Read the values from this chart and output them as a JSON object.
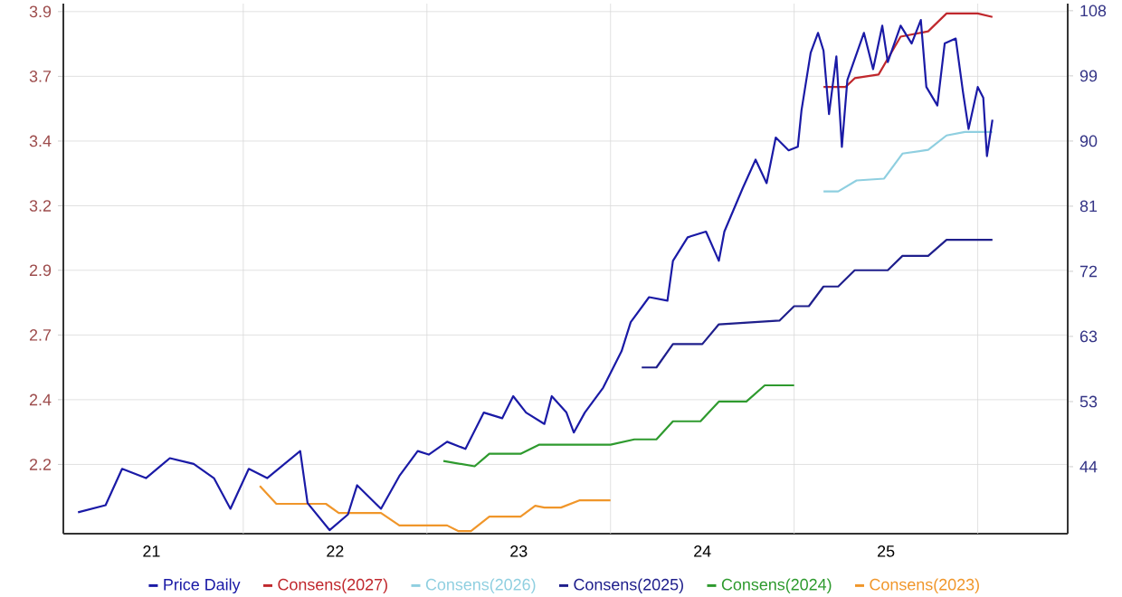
{
  "chart_data": {
    "type": "line",
    "xlim": [
      20.52,
      25.99
    ],
    "ylim": [
      1.94,
      3.93
    ],
    "y2lim": [
      34.9,
      109.3
    ],
    "xticks": [
      {
        "value": 21,
        "label": "21"
      },
      {
        "value": 21.5,
        "label": null
      },
      {
        "value": 22,
        "label": "22"
      },
      {
        "value": 22.5,
        "label": null
      },
      {
        "value": 23,
        "label": "23"
      },
      {
        "value": 23.5,
        "label": null
      },
      {
        "value": 24,
        "label": "24"
      },
      {
        "value": 24.5,
        "label": null
      },
      {
        "value": 25,
        "label": "25"
      },
      {
        "value": 25.5,
        "label": null
      }
    ],
    "yticks": [
      {
        "value": 2.2,
        "label": "2.2"
      },
      {
        "value": 2.443,
        "label": "2.4"
      },
      {
        "value": 2.686,
        "label": "2.7"
      },
      {
        "value": 2.929,
        "label": "2.9"
      },
      {
        "value": 3.171,
        "label": "3.2"
      },
      {
        "value": 3.414,
        "label": "3.4"
      },
      {
        "value": 3.657,
        "label": "3.7"
      },
      {
        "value": 3.9,
        "label": "3.9"
      }
    ],
    "y2ticks": [
      {
        "value": 44.3,
        "label": "44"
      },
      {
        "value": 53.44,
        "label": "53"
      },
      {
        "value": 62.59,
        "label": "63"
      },
      {
        "value": 71.73,
        "label": "72"
      },
      {
        "value": 80.87,
        "label": "81"
      },
      {
        "value": 90.01,
        "label": "90"
      },
      {
        "value": 99.16,
        "label": "99"
      },
      {
        "value": 108.3,
        "label": "108"
      }
    ],
    "grid": true,
    "legend": "bottom",
    "marker": "none",
    "line_style": "solid",
    "series": [
      {
        "name": "Price Daily",
        "color": "#1a1aa6",
        "axis": "y2",
        "x": [
          20.6,
          20.75,
          20.84,
          20.97,
          21.1,
          21.23,
          21.34,
          21.43,
          21.53,
          21.63,
          21.81,
          21.85,
          21.97,
          22.07,
          22.12,
          22.25,
          22.35,
          22.45,
          22.51,
          22.61,
          22.71,
          22.81,
          22.91,
          22.97,
          23.04,
          23.14,
          23.18,
          23.26,
          23.3,
          23.36,
          23.46,
          23.56,
          23.61,
          23.71,
          23.81,
          23.84,
          23.92,
          24.02,
          24.09,
          24.12,
          24.22,
          24.29,
          24.35,
          24.4,
          24.47,
          24.52,
          24.54,
          24.59,
          24.63,
          24.66,
          24.69,
          24.73,
          24.76,
          24.79,
          24.88,
          24.93,
          24.98,
          25.01,
          25.08,
          25.14,
          25.19,
          25.22,
          25.28,
          25.32,
          25.38,
          25.42,
          25.45,
          25.5,
          25.53,
          25.55,
          25.58
        ],
        "values": [
          37.9,
          38.9,
          44.0,
          42.7,
          45.5,
          44.7,
          42.7,
          38.4,
          44.0,
          42.7,
          46.5,
          39.2,
          35.4,
          37.6,
          41.7,
          38.4,
          43.0,
          46.5,
          46.0,
          47.8,
          46.8,
          51.9,
          51.1,
          54.2,
          51.9,
          50.3,
          54.2,
          51.9,
          49.1,
          51.9,
          55.4,
          60.5,
          64.6,
          68.1,
          67.6,
          73.2,
          76.5,
          77.3,
          73.2,
          77.3,
          83.4,
          87.4,
          84.1,
          90.5,
          88.7,
          89.2,
          94.3,
          102.4,
          105.2,
          102.7,
          93.8,
          101.9,
          89.2,
          98.6,
          105.2,
          100.1,
          106.2,
          101.1,
          106.2,
          103.7,
          107.0,
          97.6,
          95.0,
          103.7,
          104.4,
          96.8,
          91.7,
          97.6,
          96.1,
          87.9,
          93.0
        ]
      },
      {
        "name": "Consens(2027)",
        "color": "#c0282d",
        "axis": "y",
        "x": [
          24.66,
          24.78,
          24.83,
          24.96,
          25.08,
          25.23,
          25.33,
          25.5,
          25.58
        ],
        "values": [
          3.617,
          3.617,
          3.65,
          3.664,
          3.806,
          3.826,
          3.893,
          3.893,
          3.88
        ]
      },
      {
        "name": "Consens(2026)",
        "color": "#8fcfe0",
        "axis": "y",
        "x": [
          24.66,
          24.74,
          24.84,
          24.99,
          25.09,
          25.23,
          25.33,
          25.43,
          25.58
        ],
        "values": [
          3.225,
          3.225,
          3.266,
          3.273,
          3.367,
          3.381,
          3.435,
          3.448,
          3.448
        ]
      },
      {
        "name": "Consens(2025)",
        "color": "#1f1f8c",
        "axis": "y",
        "x": [
          23.67,
          23.75,
          23.84,
          24.0,
          24.09,
          24.42,
          24.5,
          24.58,
          24.66,
          24.74,
          24.83,
          25.01,
          25.09,
          25.23,
          25.33,
          25.58
        ],
        "values": [
          2.564,
          2.564,
          2.652,
          2.652,
          2.726,
          2.74,
          2.794,
          2.794,
          2.868,
          2.868,
          2.929,
          2.929,
          2.983,
          2.983,
          3.043,
          3.043
        ]
      },
      {
        "name": "Consens(2024)",
        "color": "#2e9a2e",
        "axis": "y",
        "x": [
          22.59,
          22.76,
          22.84,
          23.01,
          23.11,
          23.14,
          23.5,
          23.63,
          23.75,
          23.84,
          23.99,
          24.09,
          24.24,
          24.34,
          24.5
        ],
        "values": [
          2.213,
          2.193,
          2.24,
          2.24,
          2.274,
          2.274,
          2.274,
          2.294,
          2.294,
          2.362,
          2.362,
          2.436,
          2.436,
          2.497,
          2.497
        ]
      },
      {
        "name": "Consens(2023)",
        "color": "#f0962a",
        "axis": "y",
        "x": [
          21.59,
          21.68,
          21.95,
          22.02,
          22.25,
          22.35,
          22.61,
          22.67,
          22.74,
          22.84,
          23.01,
          23.09,
          23.14,
          23.23,
          23.33,
          23.5
        ],
        "values": [
          2.119,
          2.052,
          2.052,
          2.018,
          2.018,
          1.971,
          1.971,
          1.95,
          1.95,
          2.004,
          2.004,
          2.045,
          2.038,
          2.038,
          2.065,
          2.065
        ]
      }
    ]
  }
}
